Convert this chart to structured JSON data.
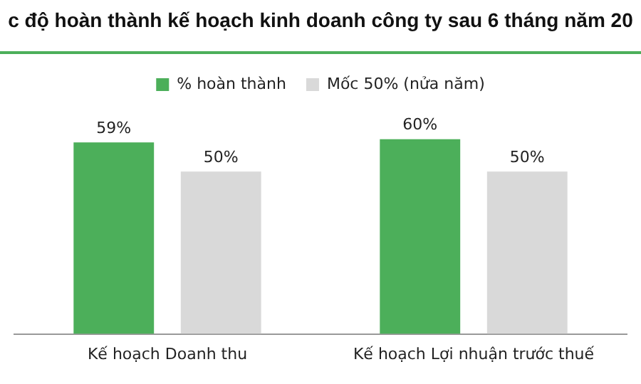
{
  "chart_data": {
    "type": "bar",
    "title": "c độ hoàn thành kế hoạch kinh doanh công ty sau 6 tháng năm 20",
    "categories": [
      "Kế hoạch Doanh thu",
      "Kế hoạch Lợi nhuận trước thuế"
    ],
    "series": [
      {
        "name": "% hoàn thành",
        "color": "#4caf5a",
        "values": [
          59,
          60
        ],
        "value_labels": [
          "59%",
          "60%"
        ]
      },
      {
        "name": "Mốc 50% (nửa năm)",
        "color": "#d9d9d9",
        "values": [
          50,
          50
        ],
        "value_labels": [
          "50%",
          "50%"
        ]
      }
    ],
    "legend": "top",
    "grid": false
  }
}
